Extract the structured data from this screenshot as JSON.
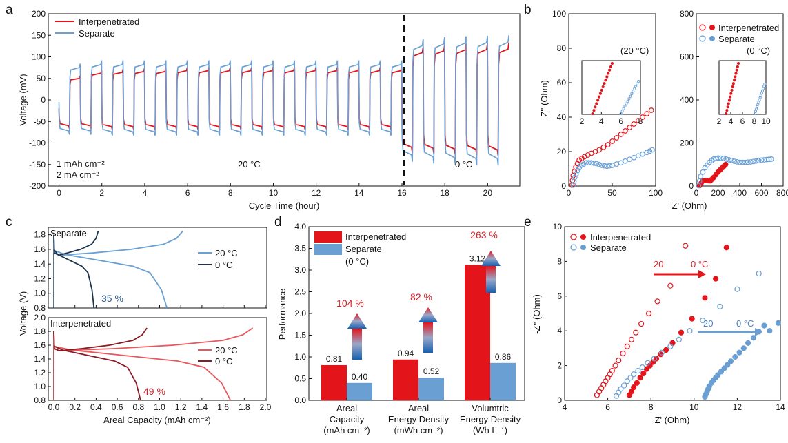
{
  "colors": {
    "red": "#e3151b",
    "blue": "#6a9fd4",
    "dark_red": "#8b1a24",
    "dark_blue": "#1b3550",
    "red_text": "#d51f26",
    "blue_text": "#2f5d8f"
  },
  "panels": [
    "a",
    "b",
    "c",
    "d",
    "e"
  ],
  "chart_data": [
    {
      "panel": "a",
      "type": "line",
      "xlabel": "Cycle Time (hour)",
      "ylabel": "Voltage (mV)",
      "xlim": [
        -0.5,
        21.5
      ],
      "ylim": [
        -200,
        200
      ],
      "xticks": [
        "0",
        "2",
        "4",
        "6",
        "8",
        "10",
        "12",
        "14",
        "16",
        "18",
        "20"
      ],
      "yticks": [
        "-200",
        "-150",
        "-100",
        "-50",
        "0",
        "50",
        "100",
        "150",
        "200"
      ],
      "legend": [
        "Interpenetrated",
        "Separate"
      ],
      "annotations": [
        "1 mAh cm⁻²",
        "2 mA cm⁻²",
        "20 °C",
        "0 °C"
      ],
      "divider_x": 16,
      "cycle_period_h": 1,
      "series": [
        {
          "name": "Interpenetrated",
          "charge_plateau_20C": [
            50,
            62,
            64,
            66,
            66,
            68,
            68,
            68,
            68,
            68,
            68,
            68,
            68,
            68,
            68,
            68
          ],
          "discharge_plateau_20C": [
            -60,
            -60,
            -62,
            -62,
            -62,
            -62,
            -62,
            -62,
            -62,
            -62,
            -62,
            -62,
            -62,
            -62,
            -62,
            -62
          ],
          "charge_plateau_0C": [
            110,
            114,
            116,
            117,
            118
          ],
          "discharge_plateau_0C": [
            -110,
            -112,
            -114,
            -115,
            -116
          ]
        },
        {
          "name": "Separate",
          "charge_plateau_20C": [
            75,
            82,
            82,
            82,
            82,
            82,
            82,
            82,
            82,
            82,
            82,
            82,
            82,
            82,
            82,
            82
          ],
          "discharge_plateau_20C": [
            -72,
            -72,
            -74,
            -74,
            -74,
            -74,
            -74,
            -74,
            -74,
            -74,
            -74,
            -74,
            -74,
            -74,
            -74,
            -74
          ],
          "charge_plateau_0C": [
            126,
            130,
            132,
            133,
            134
          ],
          "discharge_plateau_0C": [
            -128,
            -132,
            -134,
            -136,
            -136
          ]
        }
      ]
    },
    {
      "panel": "b-left",
      "type": "scatter",
      "xlabel": "Z' (Ohm)",
      "ylabel": "-Z'' (Ohm)",
      "xlim": [
        0,
        100
      ],
      "ylim": [
        0,
        100
      ],
      "xticks": [
        "0",
        "50",
        "100"
      ],
      "yticks": [
        "0",
        "20",
        "40",
        "60",
        "80",
        "100"
      ],
      "annotation": "(20 °C)",
      "inset": {
        "xlim": [
          2,
          8
        ],
        "xticks": [
          "2",
          "4",
          "6",
          "8"
        ]
      },
      "series": [
        {
          "name": "Interpenetrated",
          "x": [
            3.5,
            5,
            8,
            12,
            18,
            26,
            35,
            45,
            55,
            65,
            75,
            85,
            95
          ],
          "y": [
            0.5,
            6,
            11,
            15,
            17,
            19,
            21,
            24,
            28,
            32,
            36,
            40,
            44
          ]
        },
        {
          "name": "Separate",
          "x": [
            5,
            7,
            10,
            14,
            20,
            26,
            32,
            38,
            44,
            50,
            60,
            70,
            80,
            90,
            96
          ],
          "y": [
            0.5,
            5,
            9,
            12,
            13.5,
            13.5,
            13,
            12,
            11.5,
            12,
            13.5,
            15.5,
            17.5,
            19.5,
            21
          ]
        }
      ]
    },
    {
      "panel": "b-right",
      "type": "scatter",
      "xlabel": "Z' (Ohm)",
      "ylabel": "",
      "xlim": [
        0,
        800
      ],
      "ylim": [
        0,
        800
      ],
      "xticks": [
        "0",
        "200",
        "400",
        "600",
        "800"
      ],
      "yticks": [
        "0",
        "200",
        "400",
        "600",
        "800"
      ],
      "annotation": "(0 °C)",
      "legend": [
        "Interpenetrated",
        "Separate"
      ],
      "inset": {
        "xlim": [
          2,
          10
        ],
        "xticks": [
          "2",
          "4",
          "6",
          "8",
          "10"
        ]
      },
      "series": [
        {
          "name": "Interpenetrated",
          "x": [
            30,
            60,
            100,
            130,
            160,
            200,
            240,
            270
          ],
          "y": [
            2,
            25,
            25,
            24,
            40,
            65,
            85,
            100
          ]
        },
        {
          "name": "Separate",
          "x": [
            20,
            40,
            80,
            120,
            160,
            200,
            250,
            300,
            350,
            400,
            450,
            500,
            550,
            600,
            650,
            690
          ],
          "y": [
            2,
            45,
            85,
            110,
            125,
            130,
            128,
            122,
            115,
            110,
            110,
            112,
            116,
            120,
            123,
            125
          ]
        }
      ]
    },
    {
      "panel": "c",
      "type": "line",
      "xlabel": "Areal Capacity (mAh cm⁻²)",
      "ylabel": "Voltage (V)",
      "xlim": [
        0,
        2.0
      ],
      "xticks": [
        "0.0",
        "0.2",
        "0.4",
        "0.6",
        "0.8",
        "1.0",
        "1.2",
        "1.4",
        "1.6",
        "1.8",
        "2.0"
      ],
      "subplots": [
        {
          "title": "Separate",
          "ylim": [
            0.8,
            2.0
          ],
          "yticks": [
            "0.8",
            "1.0",
            "1.2",
            "1.4",
            "1.6",
            "1.8"
          ],
          "annotation": "35 %",
          "series": [
            {
              "name": "20 °C",
              "charge_end_x": 1.22,
              "discharge_end_x": 1.07
            },
            {
              "name": "0 °C",
              "charge_end_x": 0.42,
              "discharge_end_x": 0.38
            }
          ]
        },
        {
          "title": "Interpenetrated",
          "ylim": [
            0.8,
            2.0
          ],
          "yticks": [
            "0.8",
            "1.0",
            "1.2",
            "1.4",
            "1.6",
            "1.8",
            "2.0"
          ],
          "annotation": "49 %",
          "series": [
            {
              "name": "20 °C",
              "charge_end_x": 1.88,
              "discharge_end_x": 1.67
            },
            {
              "name": "0 °C",
              "charge_end_x": 0.88,
              "discharge_end_x": 0.82
            }
          ]
        }
      ]
    },
    {
      "panel": "d",
      "type": "bar",
      "ylabel": "Performance",
      "ylim": [
        0,
        4.0
      ],
      "yticks": [
        "0.0",
        "0.5",
        "1.0",
        "1.5",
        "2.0",
        "2.5",
        "3.0",
        "3.5",
        "4.0"
      ],
      "categories": [
        [
          "Areal",
          "Capacity",
          "(mAh cm⁻²)"
        ],
        [
          "Areal",
          "Energy Density",
          "(mWh cm⁻²)"
        ],
        [
          "Volumtric",
          "Energy Density",
          "(Wh L⁻¹)"
        ]
      ],
      "legend": [
        "Interpenetrated",
        "Separate",
        "(0 °C)"
      ],
      "series": [
        {
          "name": "Interpenetrated",
          "values": [
            0.81,
            0.94,
            3.12
          ],
          "labels": [
            "0.81",
            "0.94",
            "3.12"
          ]
        },
        {
          "name": "Separate",
          "values": [
            0.4,
            0.52,
            0.86
          ],
          "labels": [
            "0.40",
            "0.52",
            "0.86"
          ]
        }
      ],
      "increase_labels": [
        "104 %",
        "82 %",
        "263 %"
      ]
    },
    {
      "panel": "e",
      "type": "scatter",
      "xlabel": "Z' (Ohm)",
      "ylabel": "-Z'' (Ohm)",
      "xlim": [
        4,
        14
      ],
      "ylim": [
        0,
        10
      ],
      "xticks": [
        "4",
        "6",
        "8",
        "10",
        "12",
        "14"
      ],
      "yticks": [
        "0",
        "2",
        "4",
        "6",
        "8",
        "10"
      ],
      "legend": [
        "Interpenetrated",
        "Separate"
      ],
      "annotations": [
        "20",
        "0 °C",
        "20",
        "0 °C"
      ],
      "series": [
        {
          "name": "Interpenetrated 20 °C",
          "filled": false,
          "x": [
            5.5,
            5.6,
            5.7,
            5.8,
            5.9,
            6.0,
            6.1,
            6.2,
            6.35,
            6.5,
            6.7,
            6.9,
            7.1,
            7.3,
            7.55,
            7.9,
            8.3,
            8.9,
            9.6
          ],
          "y": [
            0.3,
            0.5,
            0.7,
            0.9,
            1.1,
            1.3,
            1.5,
            1.7,
            2.0,
            2.3,
            2.7,
            3.1,
            3.5,
            3.9,
            4.4,
            5.0,
            5.7,
            6.6,
            8.9
          ]
        },
        {
          "name": "Interpenetrated 0 °C",
          "filled": true,
          "x": [
            7.0,
            7.1,
            7.2,
            7.35,
            7.5,
            7.65,
            7.8,
            7.95,
            8.1,
            8.25,
            8.45,
            8.7,
            9.0,
            9.4,
            9.9,
            10.5,
            11.0,
            11.5
          ],
          "y": [
            0.3,
            0.5,
            0.75,
            1.0,
            1.3,
            1.55,
            1.8,
            2.0,
            2.2,
            2.4,
            2.65,
            2.9,
            3.3,
            3.9,
            4.7,
            5.9,
            7.0,
            8.8
          ]
        },
        {
          "name": "Separate 20 °C",
          "filled": false,
          "x": [
            6.4,
            6.5,
            6.6,
            6.75,
            6.9,
            7.05,
            7.2,
            7.4,
            7.6,
            7.85,
            8.15,
            8.5,
            8.9,
            9.3,
            9.8,
            10.4,
            11.2,
            12.0,
            13.0
          ],
          "y": [
            0.25,
            0.45,
            0.65,
            0.85,
            1.1,
            1.3,
            1.5,
            1.7,
            1.9,
            2.15,
            2.4,
            2.75,
            3.1,
            3.5,
            4.0,
            4.6,
            5.4,
            6.4,
            7.3
          ]
        },
        {
          "name": "Separate 0 °C",
          "filled": true,
          "x": [
            10.5,
            10.55,
            10.6,
            10.65,
            10.7,
            10.8,
            10.9,
            11.0,
            11.1,
            11.25,
            11.4,
            11.55,
            11.7,
            11.9,
            12.1,
            12.3,
            12.5,
            12.75,
            13.0,
            13.25,
            13.5,
            13.9
          ],
          "y": [
            0.2,
            0.35,
            0.5,
            0.65,
            0.8,
            1.0,
            1.15,
            1.3,
            1.45,
            1.65,
            1.85,
            2.05,
            2.25,
            2.5,
            2.75,
            3.0,
            3.3,
            3.6,
            3.95,
            4.3,
            4.0,
            4.45
          ]
        }
      ]
    }
  ]
}
